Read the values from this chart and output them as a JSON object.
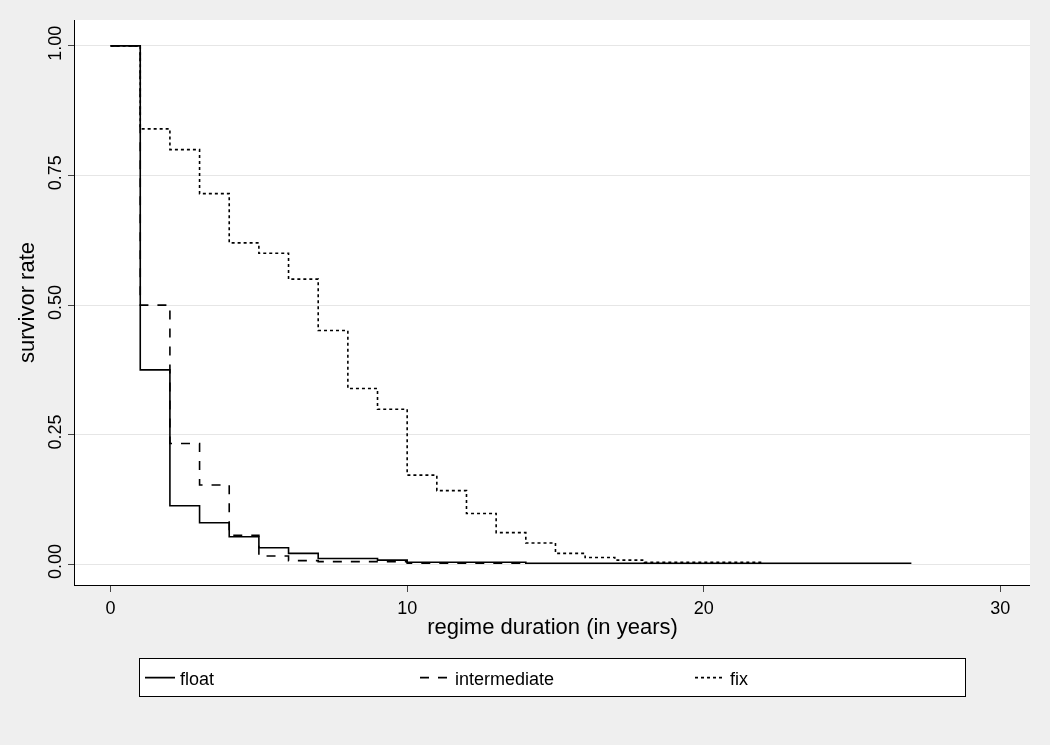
{
  "chart_data": {
    "type": "step",
    "xlabel": "regime duration (in years)",
    "ylabel": "survivor rate",
    "xlim": [
      -1.2,
      31
    ],
    "xticks": [
      0,
      10,
      20,
      30
    ],
    "ylim": [
      -0.04,
      1.05
    ],
    "yticks": [
      {
        "value": 0,
        "label": "0.00"
      },
      {
        "value": 0.25,
        "label": "0.25"
      },
      {
        "value": 0.5,
        "label": "0.50"
      },
      {
        "value": 0.75,
        "label": "0.75"
      },
      {
        "value": 1,
        "label": "1.00"
      }
    ],
    "grid": "y",
    "legend": "bottom",
    "marker": "none",
    "series": [
      {
        "name": "float",
        "color": "#000000",
        "line_style": "solid",
        "x": [
          0,
          1,
          2,
          3,
          4,
          5,
          6,
          7,
          8,
          9,
          10,
          14,
          27
        ],
        "values": [
          1,
          0.375,
          0.113,
          0.08,
          0.053,
          0.032,
          0.021,
          0.011,
          0.011,
          0.008,
          0.004,
          0.002,
          0.002
        ]
      },
      {
        "name": "intermediate",
        "color": "#000000",
        "line_style": "dashed",
        "x": [
          0,
          1,
          2,
          3,
          4,
          5,
          6,
          7,
          10,
          14
        ],
        "values": [
          1,
          0.5,
          0.233,
          0.153,
          0.056,
          0.016,
          0.007,
          0.005,
          0.002,
          0.002
        ]
      },
      {
        "name": "fix",
        "color": "#000000",
        "line_style": "dotted",
        "x": [
          0,
          1,
          2,
          3,
          4,
          5,
          6,
          7,
          8,
          9,
          10,
          11,
          12,
          13,
          14,
          15,
          16,
          17,
          18,
          22
        ],
        "values": [
          1,
          0.84,
          0.8,
          0.715,
          0.62,
          0.6,
          0.55,
          0.451,
          0.339,
          0.299,
          0.172,
          0.142,
          0.098,
          0.061,
          0.041,
          0.021,
          0.013,
          0.008,
          0.004,
          0.004
        ]
      }
    ]
  }
}
